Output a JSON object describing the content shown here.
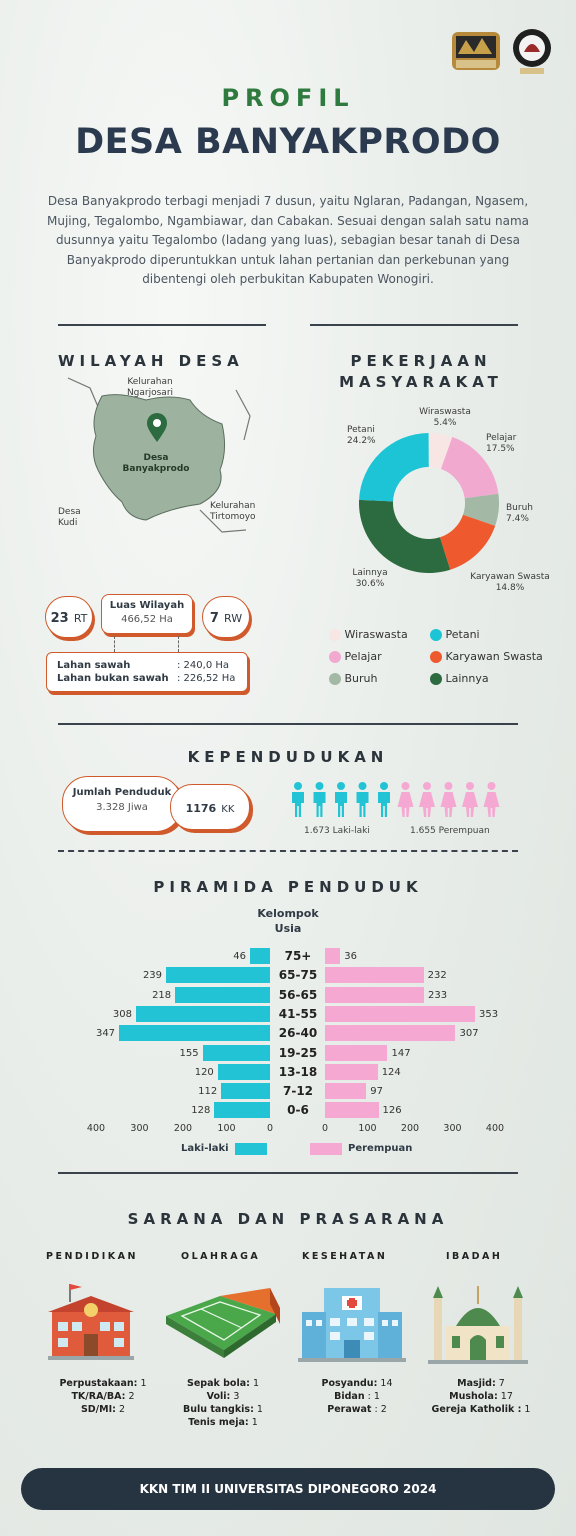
{
  "header": {
    "title_top": "PROFIL",
    "title_main": "DESA BANYAKPRODO"
  },
  "intro": "Desa Banyakprodo terbagi menjadi 7 dusun, yaitu Nglaran, Padangan, Ngasem, Mujing, Tegalombo, Ngambiawar, dan Cabakan. Sesuai dengan salah satu nama dusunnya yaitu Tegalombo (ladang yang luas), sebagian besar tanah di Desa Banyakprodo diperuntukkan untuk lahan pertanian dan perkebunan yang dibentengi oleh perbukitan Kabupaten Wonogiri.",
  "wilayah": {
    "title": "WILAYAH DESA",
    "map_labels": {
      "north": "Kelurahan\nNgarjosari",
      "center": "Desa\nBanyakprodo",
      "east": "Kelurahan\nTirtomoyo",
      "west": "Desa\nKudi"
    },
    "rt": {
      "value": "23",
      "unit": "RT"
    },
    "rw": {
      "value": "7",
      "unit": "RW"
    },
    "luas": {
      "label": "Luas Wilayah",
      "value": "466,52 Ha"
    },
    "lahan": [
      {
        "label": "Lahan sawah",
        "value": ": 240,0 Ha"
      },
      {
        "label": "Lahan bukan sawah",
        "value": ": 226,52 Ha"
      }
    ]
  },
  "pekerjaan": {
    "title_line1": "PEKERJAAN",
    "title_line2": "MASYARAKAT",
    "slices": [
      {
        "name": "Wiraswasta",
        "pct": 5.4,
        "label": "5.4%",
        "color": "#f7e6e4"
      },
      {
        "name": "Pelajar",
        "pct": 17.5,
        "label": "17.5%",
        "color": "#f2a9cf"
      },
      {
        "name": "Buruh",
        "pct": 7.4,
        "label": "7.4%",
        "color": "#a3b9a5"
      },
      {
        "name": "Karyawan Swasta",
        "pct": 14.8,
        "label": "14.8%",
        "color": "#ee5a2d"
      },
      {
        "name": "Lainnya",
        "pct": 30.6,
        "label": "30.6%",
        "color": "#2c6b3f"
      },
      {
        "name": "Petani",
        "pct": 24.2,
        "label": "24.2%",
        "color": "#1cc4d6"
      }
    ],
    "legend": [
      "Wiraswasta",
      "Petani",
      "Pelajar",
      "Karyawan Swasta",
      "Buruh",
      "Lainnya"
    ]
  },
  "kependudukan": {
    "title": "KEPENDUDUKAN",
    "jumlah_label": "Jumlah Penduduk",
    "jumlah_value": "3.328 Jiwa",
    "kk_value": "1176",
    "kk_unit": "KK",
    "male_label": "1.673 Laki-laki",
    "female_label": "1.655 Perempuan",
    "male_color": "#22c3d4",
    "female_color": "#f5a8d2"
  },
  "chart_data": {
    "type": "bar",
    "title": "PIRAMIDA PENDUDUK",
    "ylabel": "Kelompok\nUsia",
    "categories": [
      "75+",
      "65-75",
      "56-65",
      "41-55",
      "26-40",
      "19-25",
      "13-18",
      "7-12",
      "0-6"
    ],
    "series": [
      {
        "name": "Laki-laki",
        "values": [
          46,
          239,
          218,
          308,
          347,
          155,
          120,
          112,
          128
        ],
        "color": "#22c3d4"
      },
      {
        "name": "Perempuan",
        "values": [
          36,
          232,
          233,
          353,
          307,
          147,
          124,
          97,
          126
        ],
        "color": "#f5a8d2"
      }
    ],
    "xlim": [
      0,
      400
    ],
    "left_ticks": [
      "400",
      "300",
      "200",
      "100",
      "0"
    ],
    "right_ticks": [
      "0",
      "100",
      "200",
      "300",
      "400"
    ],
    "legend_position": "bottom"
  },
  "sarana": {
    "title": "SARANA DAN PRASARANA",
    "categories": [
      {
        "title": "PENDIDIKAN",
        "icon": "school-icon",
        "items": [
          {
            "k": "Perpustakaan:",
            "v": " 1"
          },
          {
            "k": "TK/RA/BA:",
            "v": " 2"
          },
          {
            "k": "SD/MI:",
            "v": " 2"
          }
        ]
      },
      {
        "title": "OLAHRAGA",
        "icon": "stadium-icon",
        "items": [
          {
            "k": "Sepak bola:",
            "v": " 1"
          },
          {
            "k": "Voli:",
            "v": " 3"
          },
          {
            "k": "Bulu tangkis:",
            "v": " 1"
          },
          {
            "k": "Tenis meja:",
            "v": " 1"
          }
        ]
      },
      {
        "title": "KESEHATAN",
        "icon": "hospital-icon",
        "items": [
          {
            "k": "Posyandu:",
            "v": " 14"
          },
          {
            "k": "Bidan",
            "v": " : 1"
          },
          {
            "k": "Perawat",
            "v": " : 2"
          }
        ]
      },
      {
        "title": "IBADAH",
        "icon": "mosque-icon",
        "items": [
          {
            "k": "Masjid:",
            "v": " 7"
          },
          {
            "k": "Mushola:",
            "v": " 17"
          },
          {
            "k": "Gereja Katholik :",
            "v": " 1"
          }
        ]
      }
    ]
  },
  "footer": "KKN TIM II UNIVERSITAS DIPONEGORO 2024"
}
